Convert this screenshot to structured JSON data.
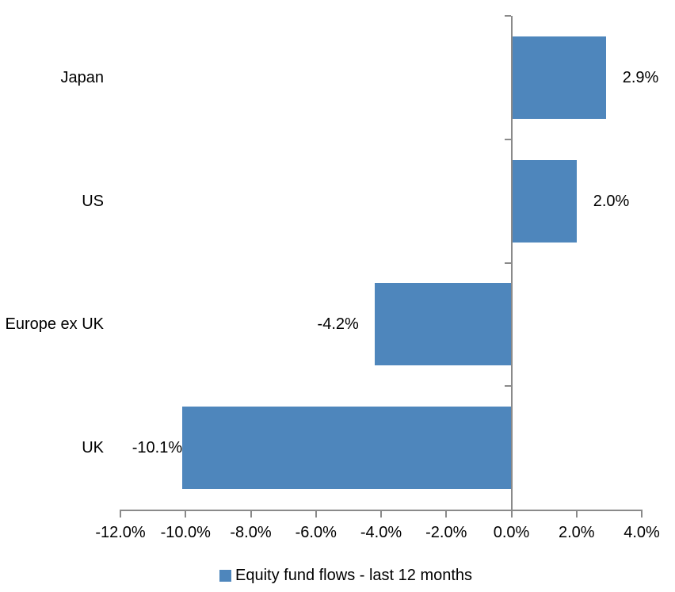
{
  "chart_data": {
    "type": "bar",
    "orientation": "horizontal",
    "title": "",
    "categories": [
      "Japan",
      "US",
      "Europe ex UK",
      "UK"
    ],
    "values": [
      2.9,
      2.0,
      -4.2,
      -10.1
    ],
    "data_labels": [
      "2.9%",
      "2.0%",
      "-4.2%",
      "-10.1%"
    ],
    "series": [
      {
        "name": "Equity fund flows - last 12 months",
        "values": [
          2.9,
          2.0,
          -4.2,
          -10.1
        ]
      }
    ],
    "legend": "Equity fund flows - last 12 months",
    "legend_position": "bottom",
    "xlabel": "",
    "ylabel": "",
    "xlim": [
      -12,
      4
    ],
    "x_tick_values": [
      -12,
      -10,
      -8,
      -6,
      -4,
      -2,
      0,
      2,
      4
    ],
    "x_tick_labels": [
      "-12.0%",
      "-10.0%",
      "-8.0%",
      "-6.0%",
      "-4.0%",
      "-2.0%",
      "0.0%",
      "2.0%",
      "4.0%"
    ],
    "grid": false,
    "bar_color": "#4E86BC",
    "axis_color": "#8A8A8A",
    "text_color": "#000000",
    "background_color": "#FFFFFF"
  }
}
